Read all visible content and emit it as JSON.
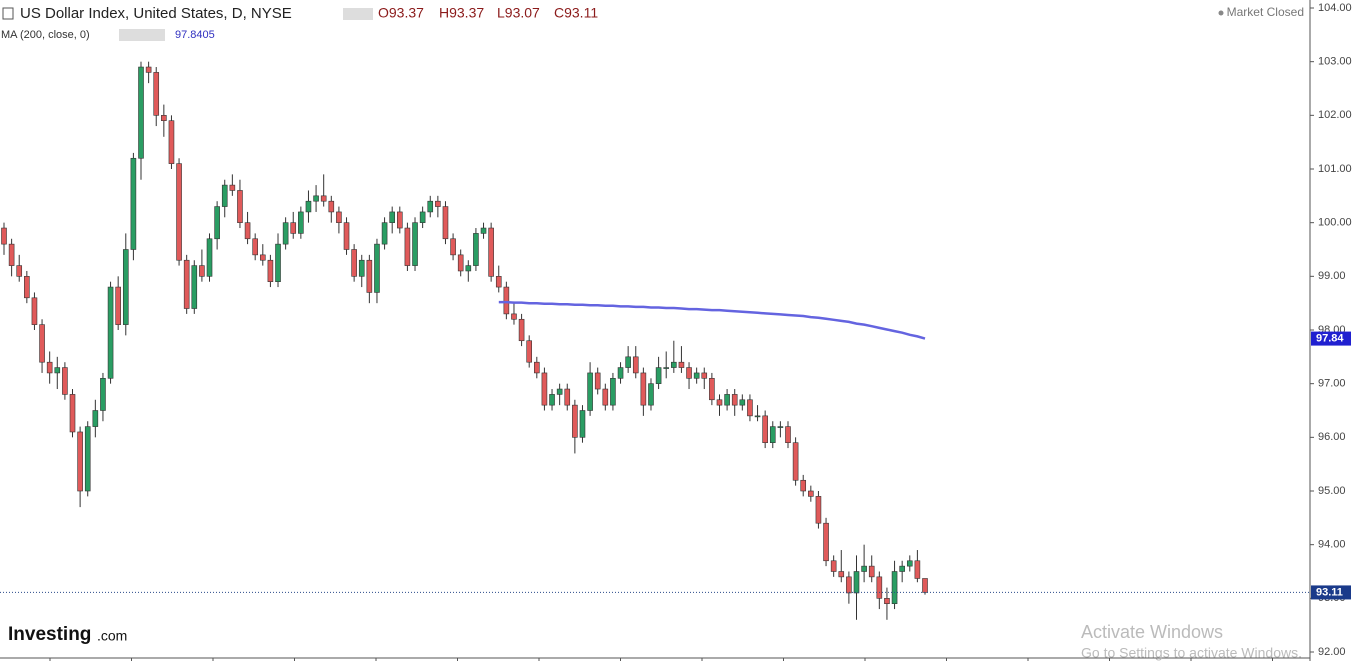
{
  "chart_data": {
    "type": "candlestick",
    "title": "US Dollar Index, United States, D, NYSE",
    "ohlc_header": [
      "O93.37",
      "H93.37",
      "L93.07",
      "C93.11"
    ],
    "indicator_label": "MA (200, close, 0)",
    "indicator_value": "97.8405",
    "status": "Market Closed",
    "brand": "Investing",
    "brand_suffix": ".com",
    "watermark": [
      "Activate Windows",
      "Go to Settings to activate Windows."
    ],
    "up_color": "#2a9d63",
    "down_color": "#e05a5a",
    "ylim": [
      92,
      104
    ],
    "yticks": [
      {
        "value": 92,
        "label": "92.00"
      },
      {
        "value": 93,
        "label": "93.00"
      },
      {
        "value": 94,
        "label": "94.00"
      },
      {
        "value": 95,
        "label": "95.00"
      },
      {
        "value": 96,
        "label": "96.00"
      },
      {
        "value": 97,
        "label": "97.00"
      },
      {
        "value": 98,
        "label": "98.00"
      },
      {
        "value": 99,
        "label": "99.00"
      },
      {
        "value": 100,
        "label": "100.00"
      },
      {
        "value": 101,
        "label": "101.00"
      },
      {
        "value": 102,
        "label": "102.00"
      },
      {
        "value": 103,
        "label": "103.00"
      },
      {
        "value": 104,
        "label": "104.00"
      }
    ],
    "candles": [
      [
        99.9,
        100.0,
        99.4,
        99.6
      ],
      [
        99.6,
        99.7,
        99.0,
        99.2
      ],
      [
        99.2,
        99.4,
        98.9,
        99.0
      ],
      [
        99.0,
        99.1,
        98.5,
        98.6
      ],
      [
        98.6,
        98.7,
        98.0,
        98.1
      ],
      [
        98.1,
        98.2,
        97.2,
        97.4
      ],
      [
        97.4,
        97.6,
        97.0,
        97.2
      ],
      [
        97.2,
        97.5,
        96.9,
        97.3
      ],
      [
        97.3,
        97.4,
        96.7,
        96.8
      ],
      [
        96.8,
        96.9,
        96.0,
        96.1
      ],
      [
        96.1,
        96.2,
        94.7,
        95.0
      ],
      [
        95.0,
        96.3,
        94.9,
        96.2
      ],
      [
        96.2,
        96.7,
        96.0,
        96.5
      ],
      [
        96.5,
        97.2,
        96.3,
        97.1
      ],
      [
        97.1,
        98.9,
        97.0,
        98.8
      ],
      [
        98.8,
        99.0,
        98.0,
        98.1
      ],
      [
        98.1,
        99.8,
        97.9,
        99.5
      ],
      [
        99.5,
        101.3,
        99.3,
        101.2
      ],
      [
        101.2,
        103.0,
        100.8,
        102.9
      ],
      [
        102.9,
        103.0,
        102.6,
        102.8
      ],
      [
        102.8,
        102.9,
        101.8,
        102.0
      ],
      [
        102.0,
        102.2,
        101.6,
        101.9
      ],
      [
        101.9,
        102.0,
        101.0,
        101.1
      ],
      [
        101.1,
        101.2,
        99.2,
        99.3
      ],
      [
        99.3,
        99.4,
        98.3,
        98.4
      ],
      [
        98.4,
        99.3,
        98.3,
        99.2
      ],
      [
        99.2,
        99.5,
        98.9,
        99.0
      ],
      [
        99.0,
        99.8,
        98.9,
        99.7
      ],
      [
        99.7,
        100.4,
        99.5,
        100.3
      ],
      [
        100.3,
        100.8,
        100.1,
        100.7
      ],
      [
        100.7,
        100.9,
        100.5,
        100.6
      ],
      [
        100.6,
        100.8,
        99.9,
        100.0
      ],
      [
        100.0,
        100.2,
        99.6,
        99.7
      ],
      [
        99.7,
        99.8,
        99.3,
        99.4
      ],
      [
        99.4,
        99.6,
        99.2,
        99.3
      ],
      [
        99.3,
        99.4,
        98.8,
        98.9
      ],
      [
        98.9,
        99.8,
        98.8,
        99.6
      ],
      [
        99.6,
        100.1,
        99.5,
        100.0
      ],
      [
        100.0,
        100.2,
        99.7,
        99.8
      ],
      [
        99.8,
        100.3,
        99.7,
        100.2
      ],
      [
        100.2,
        100.6,
        100.0,
        100.4
      ],
      [
        100.4,
        100.7,
        100.2,
        100.5
      ],
      [
        100.5,
        100.9,
        100.3,
        100.4
      ],
      [
        100.4,
        100.5,
        100.0,
        100.2
      ],
      [
        100.2,
        100.3,
        99.8,
        100.0
      ],
      [
        100.0,
        100.1,
        99.4,
        99.5
      ],
      [
        99.5,
        99.6,
        98.9,
        99.0
      ],
      [
        99.0,
        99.4,
        98.8,
        99.3
      ],
      [
        99.3,
        99.4,
        98.5,
        98.7
      ],
      [
        98.7,
        99.7,
        98.5,
        99.6
      ],
      [
        99.6,
        100.1,
        99.5,
        100.0
      ],
      [
        100.0,
        100.3,
        99.8,
        100.2
      ],
      [
        100.2,
        100.3,
        99.8,
        99.9
      ],
      [
        99.9,
        100.0,
        99.1,
        99.2
      ],
      [
        99.2,
        100.1,
        99.1,
        100.0
      ],
      [
        100.0,
        100.3,
        99.9,
        100.2
      ],
      [
        100.2,
        100.5,
        100.1,
        100.4
      ],
      [
        100.4,
        100.5,
        100.1,
        100.3
      ],
      [
        100.3,
        100.4,
        99.6,
        99.7
      ],
      [
        99.7,
        99.8,
        99.3,
        99.4
      ],
      [
        99.4,
        99.5,
        99.0,
        99.1
      ],
      [
        99.1,
        99.3,
        98.9,
        99.2
      ],
      [
        99.2,
        99.9,
        99.1,
        99.8
      ],
      [
        99.8,
        100.0,
        99.7,
        99.9
      ],
      [
        99.9,
        100.0,
        98.9,
        99.0
      ],
      [
        99.0,
        99.2,
        98.7,
        98.8
      ],
      [
        98.8,
        98.9,
        98.2,
        98.3
      ],
      [
        98.3,
        98.5,
        98.1,
        98.2
      ],
      [
        98.2,
        98.3,
        97.7,
        97.8
      ],
      [
        97.8,
        97.9,
        97.3,
        97.4
      ],
      [
        97.4,
        97.5,
        97.1,
        97.2
      ],
      [
        97.2,
        97.3,
        96.5,
        96.6
      ],
      [
        96.6,
        96.9,
        96.5,
        96.8
      ],
      [
        96.8,
        97.0,
        96.6,
        96.9
      ],
      [
        96.9,
        97.0,
        96.5,
        96.6
      ],
      [
        96.6,
        96.7,
        95.7,
        96.0
      ],
      [
        96.0,
        96.6,
        95.9,
        96.5
      ],
      [
        96.5,
        97.4,
        96.4,
        97.2
      ],
      [
        97.2,
        97.3,
        96.8,
        96.9
      ],
      [
        96.9,
        97.0,
        96.5,
        96.6
      ],
      [
        96.6,
        97.2,
        96.5,
        97.1
      ],
      [
        97.1,
        97.4,
        97.0,
        97.3
      ],
      [
        97.3,
        97.7,
        97.2,
        97.5
      ],
      [
        97.5,
        97.7,
        97.1,
        97.2
      ],
      [
        97.2,
        97.3,
        96.4,
        96.6
      ],
      [
        96.6,
        97.1,
        96.5,
        97.0
      ],
      [
        97.0,
        97.5,
        96.9,
        97.3
      ],
      [
        97.3,
        97.6,
        97.1,
        97.3
      ],
      [
        97.3,
        97.8,
        97.2,
        97.4
      ],
      [
        97.4,
        97.7,
        97.2,
        97.3
      ],
      [
        97.3,
        97.4,
        96.9,
        97.1
      ],
      [
        97.1,
        97.3,
        97.0,
        97.2
      ],
      [
        97.2,
        97.3,
        96.9,
        97.1
      ],
      [
        97.1,
        97.2,
        96.6,
        96.7
      ],
      [
        96.7,
        96.8,
        96.4,
        96.6
      ],
      [
        96.6,
        96.9,
        96.5,
        96.8
      ],
      [
        96.8,
        96.9,
        96.4,
        96.6
      ],
      [
        96.6,
        96.8,
        96.5,
        96.7
      ],
      [
        96.7,
        96.8,
        96.3,
        96.4
      ],
      [
        96.4,
        96.6,
        96.3,
        96.4
      ],
      [
        96.4,
        96.5,
        95.8,
        95.9
      ],
      [
        95.9,
        96.3,
        95.8,
        96.2
      ],
      [
        96.2,
        96.3,
        96.0,
        96.2
      ],
      [
        96.2,
        96.3,
        95.8,
        95.9
      ],
      [
        95.9,
        96.0,
        95.1,
        95.2
      ],
      [
        95.2,
        95.3,
        94.9,
        95.0
      ],
      [
        95.0,
        95.1,
        94.8,
        94.9
      ],
      [
        94.9,
        95.0,
        94.3,
        94.4
      ],
      [
        94.4,
        94.5,
        93.6,
        93.7
      ],
      [
        93.7,
        93.8,
        93.4,
        93.5
      ],
      [
        93.5,
        93.9,
        93.3,
        93.4
      ],
      [
        93.4,
        93.5,
        92.9,
        93.1
      ],
      [
        93.1,
        93.8,
        92.6,
        93.5
      ],
      [
        93.5,
        94.0,
        93.3,
        93.6
      ],
      [
        93.6,
        93.8,
        93.3,
        93.4
      ],
      [
        93.4,
        93.5,
        92.8,
        93.0
      ],
      [
        93.0,
        93.2,
        92.6,
        92.9
      ],
      [
        92.9,
        93.7,
        92.8,
        93.5
      ],
      [
        93.5,
        93.7,
        93.3,
        93.6
      ],
      [
        93.6,
        93.8,
        93.5,
        93.7
      ],
      [
        93.7,
        93.9,
        93.3,
        93.37
      ],
      [
        93.37,
        93.37,
        93.07,
        93.11
      ]
    ],
    "ma": {
      "color": "#6464e0",
      "values": [
        null,
        null,
        null,
        null,
        null,
        null,
        null,
        null,
        null,
        null,
        null,
        null,
        null,
        null,
        null,
        null,
        null,
        null,
        null,
        null,
        null,
        null,
        null,
        null,
        null,
        null,
        null,
        null,
        null,
        null,
        null,
        null,
        null,
        null,
        null,
        null,
        null,
        null,
        null,
        null,
        null,
        null,
        null,
        null,
        null,
        null,
        null,
        null,
        null,
        null,
        null,
        null,
        null,
        null,
        null,
        null,
        null,
        null,
        null,
        null,
        null,
        null,
        null,
        null,
        null,
        98.52,
        98.52,
        98.51,
        98.51,
        98.5,
        98.5,
        98.49,
        98.49,
        98.48,
        98.48,
        98.47,
        98.47,
        98.46,
        98.46,
        98.45,
        98.45,
        98.44,
        98.44,
        98.43,
        98.43,
        98.42,
        98.42,
        98.41,
        98.41,
        98.4,
        98.39,
        98.39,
        98.38,
        98.37,
        98.37,
        98.36,
        98.35,
        98.34,
        98.33,
        98.32,
        98.31,
        98.3,
        98.29,
        98.28,
        98.27,
        98.26,
        98.24,
        98.23,
        98.21,
        98.19,
        98.17,
        98.15,
        98.12,
        98.1,
        98.07,
        98.04,
        98.01,
        97.98,
        97.95,
        97.91,
        97.88,
        97.84
      ]
    },
    "ma_last": 97.84,
    "last_price": 93.11
  }
}
